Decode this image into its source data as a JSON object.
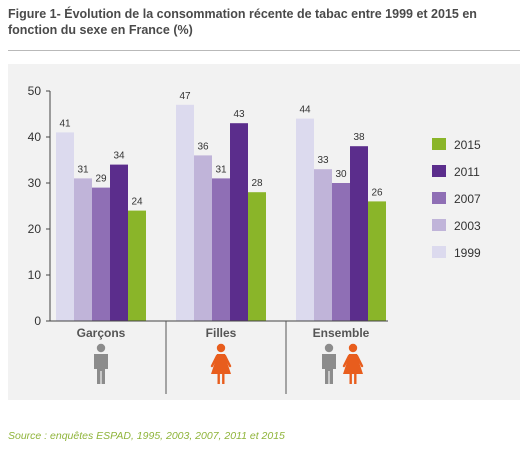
{
  "figure": {
    "title": "Figure 1- Évolution de la consommation récente de tabac entre 1999 et 2015 en fonction du sexe en France (%)",
    "source": "Source : enquêtes ESPAD, 1995, 2003, 2007, 2011 et 2015"
  },
  "chart_data": {
    "type": "bar",
    "title": "Figure 1- Évolution de la consommation récente de tabac entre 1999 et 2015 en fonction du sexe en France (%)",
    "xlabel": "",
    "ylabel": "",
    "ylim": [
      0,
      50
    ],
    "yticks": [
      0,
      10,
      20,
      30,
      40,
      50
    ],
    "grid": false,
    "legend_position": "right",
    "categories": [
      "Garçons",
      "Filles",
      "Ensemble"
    ],
    "category_icons": [
      [
        "male-icon"
      ],
      [
        "female-icon"
      ],
      [
        "male-icon",
        "female-icon"
      ]
    ],
    "series": [
      {
        "name": "1999",
        "color": "#dcdaee",
        "values": [
          41,
          47,
          44
        ]
      },
      {
        "name": "2003",
        "color": "#c0b4d9",
        "values": [
          31,
          36,
          33
        ]
      },
      {
        "name": "2007",
        "color": "#8f6fb5",
        "values": [
          29,
          31,
          30
        ]
      },
      {
        "name": "2011",
        "color": "#5b2d8c",
        "values": [
          34,
          43,
          38
        ]
      },
      {
        "name": "2015",
        "color": "#8ab529",
        "values": [
          24,
          28,
          26
        ]
      }
    ],
    "legend_order": [
      "2015",
      "2011",
      "2007",
      "2003",
      "1999"
    ],
    "icon_colors": {
      "male": "#8c8c8c",
      "female": "#e85d1d"
    }
  }
}
